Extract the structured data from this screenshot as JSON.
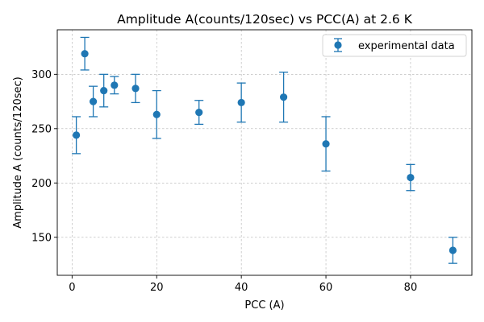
{
  "chart_data": {
    "type": "scatter",
    "title": "Amplitude A(counts/120sec) vs PCC(A) at 2.6 K",
    "xlabel": "PCC (A)",
    "ylabel": "Amplitude A (counts/120sec)",
    "xlim": [
      -3.5,
      94.5
    ],
    "ylim": [
      115,
      341
    ],
    "xticks": [
      0,
      20,
      40,
      60,
      80
    ],
    "yticks": [
      150,
      200,
      250,
      300
    ],
    "grid": true,
    "legend_position": "upper right",
    "color": "#1f77b4",
    "series": [
      {
        "name": "experimental data",
        "x": [
          1,
          3,
          5,
          7.5,
          10,
          15,
          20,
          30,
          40,
          50,
          60,
          80,
          90
        ],
        "y": [
          244,
          319,
          275,
          285,
          290,
          287,
          263,
          265,
          274,
          279,
          236,
          205,
          138
        ],
        "yerr": [
          17,
          15,
          14,
          15,
          8,
          13,
          22,
          11,
          18,
          23,
          25,
          12,
          12
        ]
      }
    ]
  }
}
